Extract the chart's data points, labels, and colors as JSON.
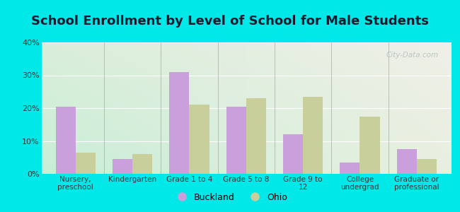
{
  "title": "School Enrollment by Level of School for Male Students",
  "categories": [
    "Nursery,\npreschool",
    "Kindergarten",
    "Grade 1 to 4",
    "Grade 5 to 8",
    "Grade 9 to\n12",
    "College\nundergrad",
    "Graduate or\nprofessional"
  ],
  "buckland_values": [
    20.5,
    4.5,
    31.0,
    20.5,
    12.0,
    3.5,
    7.5
  ],
  "ohio_values": [
    6.5,
    6.0,
    21.0,
    23.0,
    23.5,
    17.5,
    4.5
  ],
  "buckland_color": "#c9a0dc",
  "ohio_color": "#c8cf9a",
  "ylim": [
    0,
    40
  ],
  "yticks": [
    0,
    10,
    20,
    30,
    40
  ],
  "ytick_labels": [
    "0%",
    "10%",
    "20%",
    "30%",
    "40%"
  ],
  "background_outer": "#00e8e8",
  "legend_labels": [
    "Buckland",
    "Ohio"
  ],
  "title_fontsize": 13,
  "title_color": "#1a1a2e",
  "bar_width": 0.35,
  "watermark": "City-Data.com"
}
